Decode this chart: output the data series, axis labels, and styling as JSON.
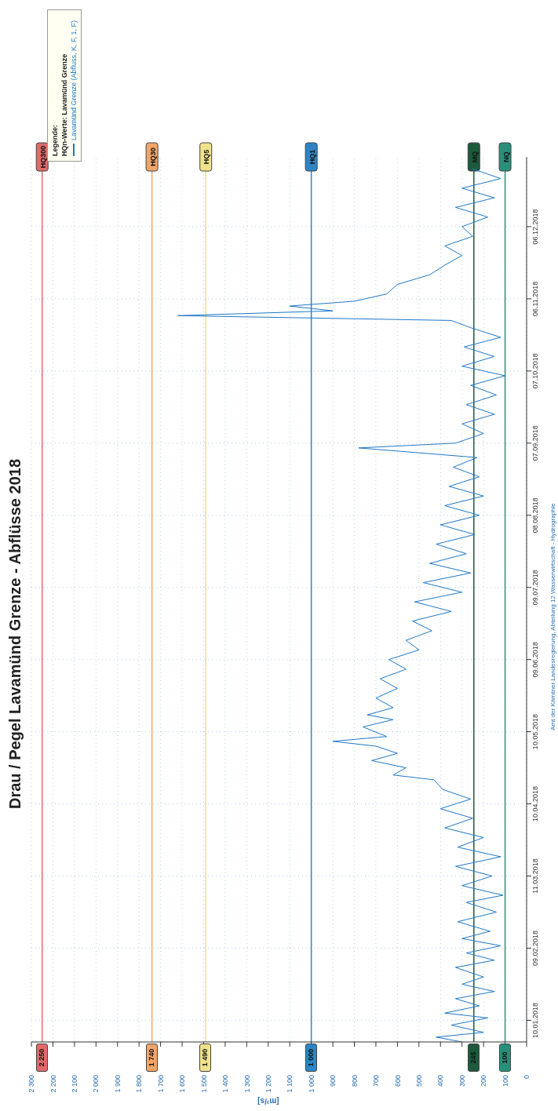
{
  "chart_data": {
    "type": "line",
    "orientation": "horizontal",
    "title": "Drau / Pegel Lavamünd Grenze  - Abflüsse 2018",
    "xlabel": "[m³/s]",
    "legend_title": "Legende:",
    "legend": "top right",
    "grid": true,
    "annotations": [
      "HQn-Werte: Lavamünd Grenze",
      "Amt der Kärntner Landesregierung, Abteilung 12 Wasserwirtschaft - Hydrographie",
      {
        "text": "2 250",
        "x": 2250,
        "y": "2018-01-01"
      },
      {
        "text": "1 740",
        "x": 1740,
        "y": "2018-01-01"
      },
      {
        "text": "1 490",
        "x": 1490,
        "y": "2018-01-01"
      },
      {
        "text": "1 000",
        "x": 1000,
        "y": "2018-01-01"
      },
      {
        "text": "245",
        "x": 245,
        "y": "2018-01-01"
      },
      {
        "text": "100",
        "x": 100,
        "y": "2018-01-01"
      }
    ],
    "ylim": [
      "2018-01-01",
      "2019-01-04"
    ],
    "yticks": [
      {
        "value": "2018-01-10",
        "label": "10.01.2018"
      },
      {
        "value": "2018-02-09",
        "label": "09.02.2018"
      },
      {
        "value": "2018-03-11",
        "label": "11.03.2018"
      },
      {
        "value": "2018-04-10",
        "label": "10.04.2018"
      },
      {
        "value": "2018-05-10",
        "label": "10.05.2018"
      },
      {
        "value": "2018-06-09",
        "label": "09.06.2018"
      },
      {
        "value": "2018-07-09",
        "label": "09.07.2018"
      },
      {
        "value": "2018-08-08",
        "label": "08.08.2018"
      },
      {
        "value": "2018-09-07",
        "label": "07.09.2018"
      },
      {
        "value": "2018-10-07",
        "label": "07.10.2018"
      },
      {
        "value": "2018-11-06",
        "label": "06.11.2018"
      },
      {
        "value": "2018-12-06",
        "label": "06.12.2018"
      }
    ],
    "xlim": [
      2300,
      0
    ],
    "xticks": [
      0,
      100,
      200,
      300,
      400,
      500,
      600,
      700,
      800,
      900,
      {
        "value": 1000,
        "label": "1 000"
      },
      {
        "value": 1100,
        "label": "1 100"
      },
      {
        "value": 1200,
        "label": "1 200"
      },
      {
        "value": 1300,
        "label": "1 300"
      },
      {
        "value": 1400,
        "label": "1 400"
      },
      {
        "value": 1500,
        "label": "1 500"
      },
      {
        "value": 1600,
        "label": "1 600"
      },
      {
        "value": 1700,
        "label": "1 700"
      },
      {
        "value": 1800,
        "label": "1 800"
      },
      {
        "value": 1900,
        "label": "1 900"
      },
      {
        "value": 2000,
        "label": "2 000"
      },
      {
        "value": 2100,
        "label": "2 100"
      },
      {
        "value": 2200,
        "label": "2 200"
      },
      {
        "value": 2300,
        "label": "2 300"
      }
    ],
    "ref_lines": [
      {
        "axis": "x",
        "value": 2250,
        "label": "HQ300",
        "color": "#e06a6a"
      },
      {
        "axis": "x",
        "value": 1740,
        "label": "HQ30",
        "color": "#f0a56a"
      },
      {
        "axis": "x",
        "value": 1490,
        "label": "HQ5",
        "color": "#efe28a"
      },
      {
        "axis": "x",
        "value": 1000,
        "label": "HQ1",
        "color": "#2a86c8"
      },
      {
        "axis": "x",
        "value": 245,
        "label": "MQ",
        "color": "#1d5a3c"
      },
      {
        "axis": "x",
        "value": 100,
        "label": "NQ",
        "color": "#2a8f7a"
      }
    ],
    "x": [
      "2018-01-01",
      "2018-01-03",
      "2018-01-05",
      "2018-01-08",
      "2018-01-11",
      "2018-01-13",
      "2018-01-16",
      "2018-01-19",
      "2018-01-22",
      "2018-01-25",
      "2018-01-28",
      "2018-02-01",
      "2018-02-04",
      "2018-02-07",
      "2018-02-10",
      "2018-02-13",
      "2018-02-16",
      "2018-02-20",
      "2018-02-24",
      "2018-02-28",
      "2018-03-03",
      "2018-03-07",
      "2018-03-11",
      "2018-03-15",
      "2018-03-19",
      "2018-03-23",
      "2018-03-27",
      "2018-03-31",
      "2018-04-04",
      "2018-04-08",
      "2018-04-12",
      "2018-04-16",
      "2018-04-20",
      "2018-04-22",
      "2018-04-25",
      "2018-04-28",
      "2018-05-01",
      "2018-05-04",
      "2018-05-06",
      "2018-05-08",
      "2018-05-12",
      "2018-05-15",
      "2018-05-17",
      "2018-05-20",
      "2018-05-24",
      "2018-05-28",
      "2018-06-01",
      "2018-06-05",
      "2018-06-09",
      "2018-06-13",
      "2018-06-17",
      "2018-06-21",
      "2018-06-25",
      "2018-06-29",
      "2018-07-03",
      "2018-07-07",
      "2018-07-11",
      "2018-07-15",
      "2018-07-19",
      "2018-07-23",
      "2018-07-27",
      "2018-07-31",
      "2018-08-04",
      "2018-08-08",
      "2018-08-12",
      "2018-08-16",
      "2018-08-20",
      "2018-08-24",
      "2018-08-28",
      "2018-09-01",
      "2018-09-05",
      "2018-09-07",
      "2018-09-11",
      "2018-09-15",
      "2018-09-19",
      "2018-09-23",
      "2018-09-27",
      "2018-10-01",
      "2018-10-05",
      "2018-10-09",
      "2018-10-13",
      "2018-10-17",
      "2018-10-21",
      "2018-10-25",
      "2018-10-28",
      "2018-10-30",
      "2018-11-01",
      "2018-11-03",
      "2018-11-05",
      "2018-11-08",
      "2018-11-12",
      "2018-11-16",
      "2018-11-20",
      "2018-11-24",
      "2018-11-28",
      "2018-12-02",
      "2018-12-06",
      "2018-12-10",
      "2018-12-14",
      "2018-12-18",
      "2018-12-22",
      "2018-12-26",
      "2018-12-30"
    ],
    "series": [
      {
        "name": "Lavamünd Grenze (Abfluss, K, F, 1, F)",
        "color": "#1f78c8",
        "values": [
          300,
          420,
          200,
          350,
          180,
          380,
          220,
          330,
          150,
          300,
          200,
          330,
          150,
          280,
          120,
          300,
          170,
          320,
          140,
          280,
          110,
          300,
          160,
          330,
          120,
          320,
          200,
          380,
          250,
          400,
          260,
          390,
          430,
          620,
          560,
          720,
          600,
          700,
          900,
          650,
          760,
          620,
          740,
          620,
          700,
          600,
          680,
          560,
          640,
          500,
          560,
          440,
          530,
          350,
          520,
          300,
          480,
          260,
          450,
          280,
          420,
          240,
          400,
          220,
          380,
          200,
          360,
          220,
          340,
          230,
          780,
          330,
          200,
          300,
          150,
          280,
          140,
          260,
          100,
          300,
          150,
          290,
          120,
          260,
          350,
          1620,
          900,
          1100,
          800,
          650,
          600,
          450,
          380,
          300,
          380,
          250,
          300,
          180,
          330,
          150,
          300,
          120,
          250
        ]
      }
    ]
  }
}
